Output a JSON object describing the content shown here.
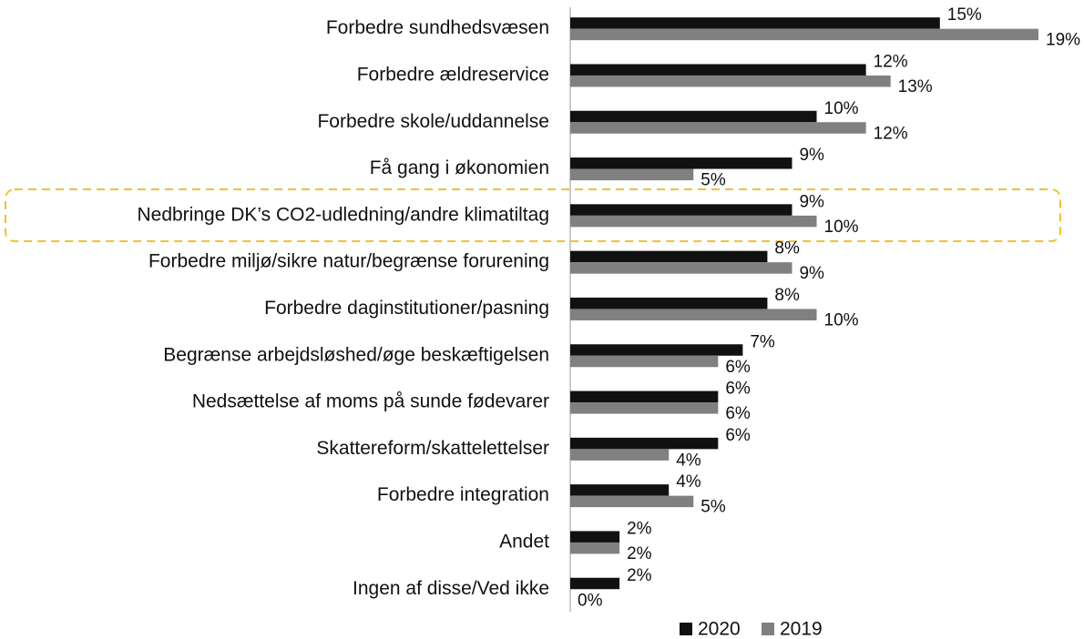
{
  "chart_data": {
    "type": "bar",
    "orientation": "horizontal",
    "categories": [
      "Forbedre sundhedsvæsen",
      "Forbedre ældreservice",
      "Forbedre skole/uddannelse",
      "Få gang i økonomien",
      "Nedbringe DK’s CO2-udledning/andre klimatiltag",
      "Forbedre miljø/sikre natur/begrænse forurening",
      "Forbedre daginstitutioner/pasning",
      "Begrænse arbejdsløshed/øge beskæftigelsen",
      "Nedsættelse af moms på sunde fødevarer",
      "Skattereform/skattelettelser",
      "Forbedre integration",
      "Andet",
      "Ingen af disse/Ved ikke"
    ],
    "series": [
      {
        "name": "2020",
        "color": "#111111",
        "values": [
          15,
          12,
          10,
          9,
          9,
          8,
          8,
          7,
          6,
          6,
          4,
          2,
          2
        ],
        "value_labels": [
          "15%",
          "12%",
          "10%",
          "9%",
          "9%",
          "8%",
          "8%",
          "7%",
          "6%",
          "6%",
          "4%",
          "2%",
          "2%"
        ]
      },
      {
        "name": "2019",
        "color": "#808080",
        "values": [
          19,
          13,
          12,
          5,
          10,
          9,
          10,
          6,
          6,
          4,
          5,
          2,
          0
        ],
        "value_labels": [
          "19%",
          "13%",
          "12%",
          "5%",
          "10%",
          "9%",
          "10%",
          "6%",
          "6%",
          "4%",
          "5%",
          "2%",
          "0%"
        ]
      }
    ],
    "legend": "bottom"
  }
}
